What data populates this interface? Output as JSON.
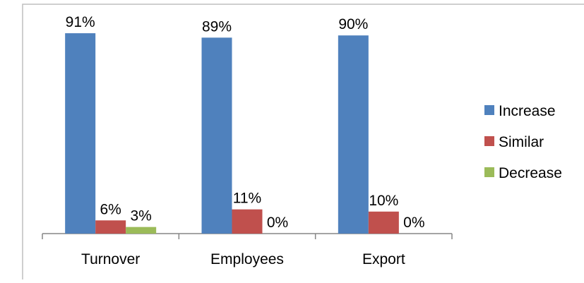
{
  "chart_data": {
    "type": "bar",
    "categories": [
      "Turnover",
      "Employees",
      "Export"
    ],
    "series": [
      {
        "name": "Increase",
        "color": "#4f81bd",
        "values": [
          91,
          89,
          90
        ],
        "labels": [
          "91%",
          "89%",
          "90%"
        ]
      },
      {
        "name": "Similar",
        "color": "#c0504d",
        "values": [
          6,
          11,
          10
        ],
        "labels": [
          "6%",
          "11%",
          "10%"
        ]
      },
      {
        "name": "Decrease",
        "color": "#9bbb59",
        "values": [
          3,
          0,
          0
        ],
        "labels": [
          "3%",
          "0%",
          "0%"
        ]
      }
    ],
    "value_unit": "%",
    "ylim": [
      0,
      100
    ],
    "grid": false,
    "legend_position": "right"
  }
}
